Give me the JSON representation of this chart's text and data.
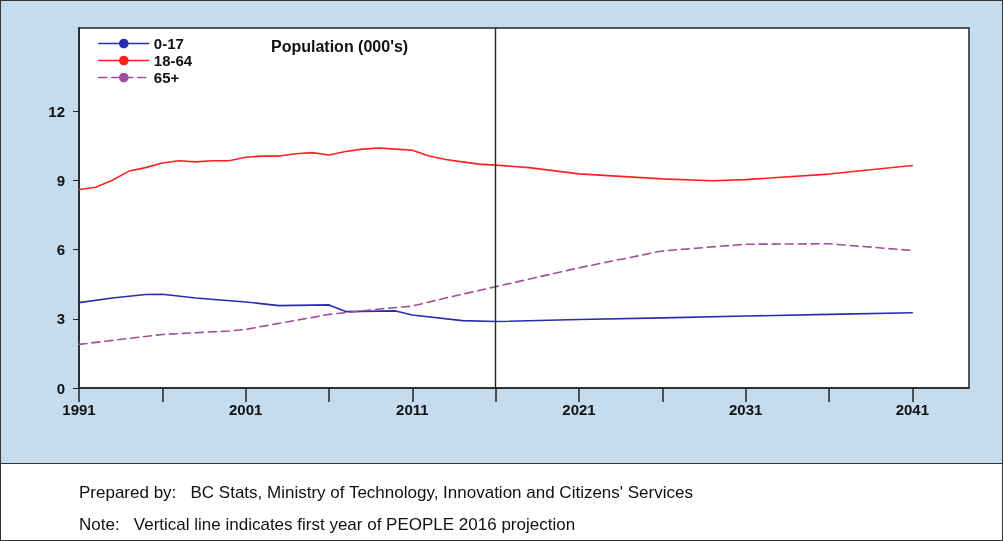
{
  "chart_data": {
    "type": "line",
    "title": "Population (000's)",
    "xlim": [
      1991,
      2044.4
    ],
    "xticks": [
      1991,
      {
        "value": 1996,
        "label": null
      },
      2001,
      {
        "value": 2006,
        "label": null
      },
      2011,
      {
        "value": 2016,
        "label": null
      },
      2021,
      {
        "value": 2026,
        "label": null
      },
      2031,
      {
        "value": 2036,
        "label": null
      },
      2041
    ],
    "ylim": [
      0,
      15.6
    ],
    "yticks": [
      0,
      3,
      6,
      9,
      12
    ],
    "grid": false,
    "legend": "top left",
    "series": [
      {
        "name": "0-17",
        "color": "#2b2bb0",
        "line_style": "solid",
        "x": [
          1991,
          1993,
          1995,
          1996,
          1998,
          2001,
          2003,
          2006,
          2007,
          2010,
          2011,
          2014,
          2016,
          2021,
          2026,
          2031,
          2036,
          2041
        ],
        "values": [
          3.7,
          3.9,
          4.05,
          4.06,
          3.9,
          3.73,
          3.57,
          3.6,
          3.31,
          3.34,
          3.16,
          2.92,
          2.88,
          2.97,
          3.04,
          3.12,
          3.19,
          3.26
        ]
      },
      {
        "name": "18-64",
        "color": "#ff2020",
        "line_style": "solid",
        "x": [
          1991,
          1992,
          1993,
          1994,
          1995,
          1996,
          1997,
          1998,
          1999,
          2000,
          2001,
          2002,
          2003,
          2004,
          2005,
          2006,
          2007,
          2008,
          2009,
          2010,
          2011,
          2012,
          2013,
          2014,
          2015,
          2016,
          2018,
          2021,
          2026,
          2029,
          2031,
          2036,
          2041
        ],
        "values": [
          8.6,
          8.7,
          9.0,
          9.4,
          9.55,
          9.75,
          9.85,
          9.8,
          9.85,
          9.85,
          10.0,
          10.05,
          10.05,
          10.15,
          10.2,
          10.1,
          10.25,
          10.35,
          10.4,
          10.35,
          10.3,
          10.05,
          9.9,
          9.8,
          9.7,
          9.66,
          9.55,
          9.28,
          9.06,
          8.98,
          9.03,
          9.27,
          9.64
        ]
      },
      {
        "name": "65+",
        "color": "#a0509a",
        "line_style": "dashed",
        "x": [
          1991,
          1996,
          2000,
          2001,
          2003,
          2006,
          2009,
          2011,
          2013,
          2016,
          2021,
          2026,
          2031,
          2036,
          2041
        ],
        "values": [
          1.89,
          2.32,
          2.47,
          2.54,
          2.8,
          3.19,
          3.42,
          3.55,
          3.9,
          4.39,
          5.21,
          5.94,
          6.23,
          6.25,
          5.96
        ]
      }
    ],
    "ref_lines": [
      {
        "axis": "x",
        "value": 2016,
        "color": "#222222",
        "line_style": "solid"
      }
    ],
    "annotations": [
      "Prepared by:   BC Stats, Ministry of Technology, Innovation and Citizens' Services",
      "Note:   Vertical line indicates first year of PEOPLE 2016 projection"
    ]
  }
}
